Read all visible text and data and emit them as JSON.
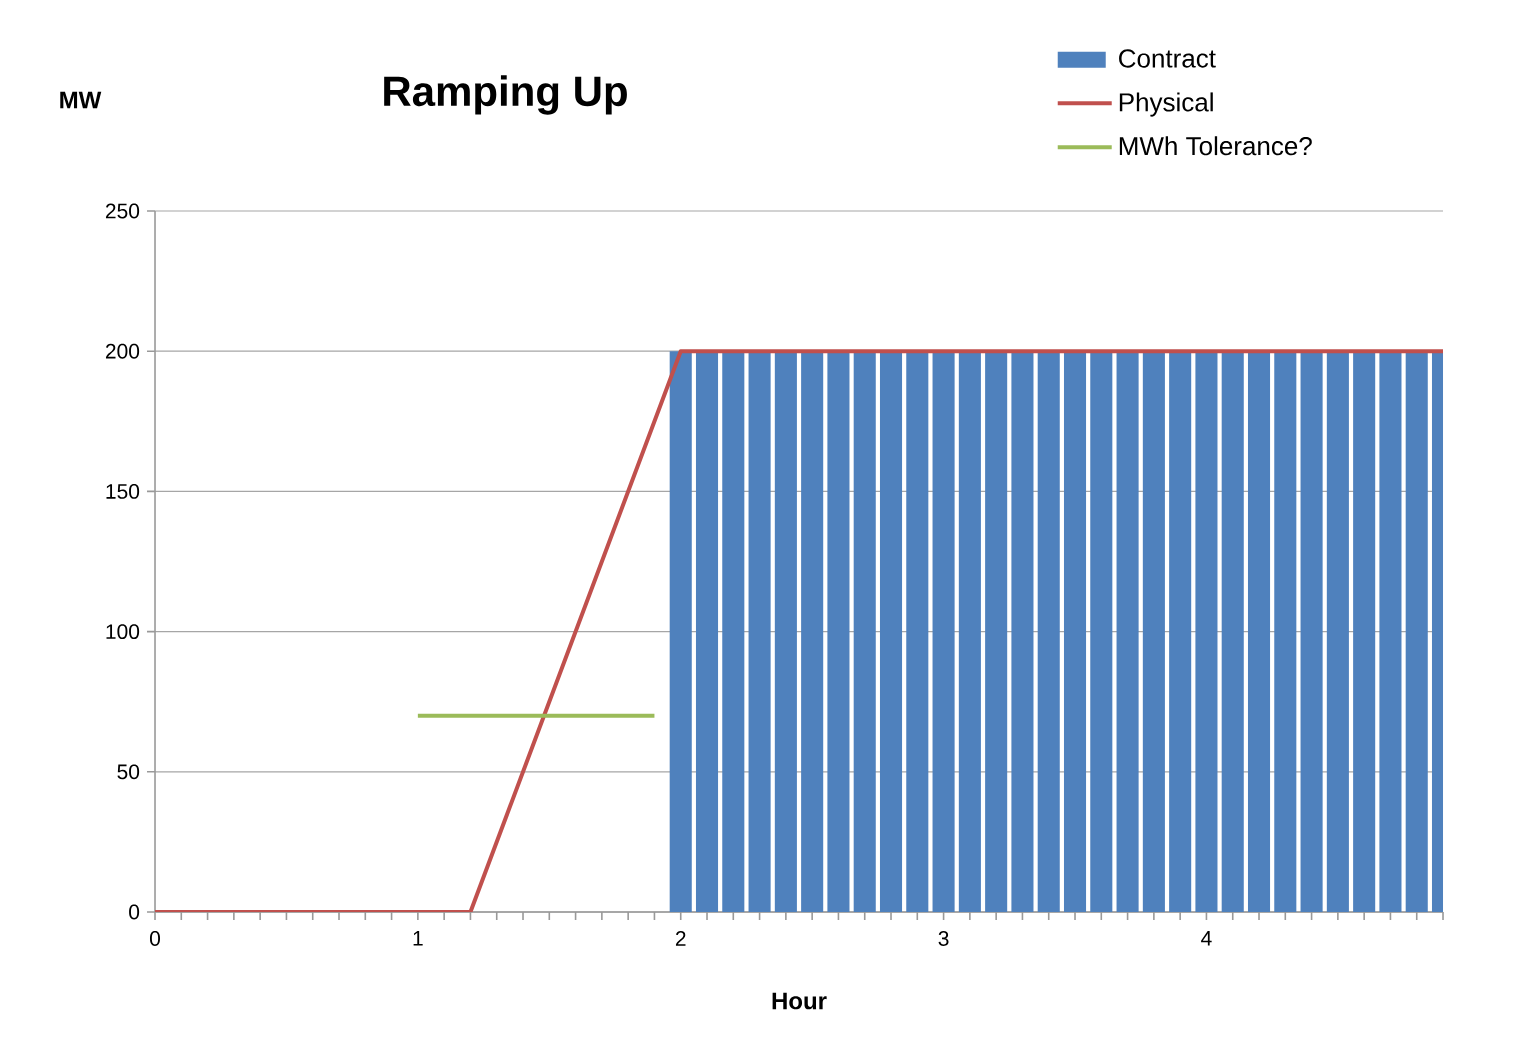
{
  "chart_data": {
    "type": "bar",
    "title": "Ramping Up",
    "xlabel": "Hour",
    "ylabel": "MW",
    "xlim": [
      0,
      4.9
    ],
    "ylim": [
      0,
      250
    ],
    "xticks": [
      0,
      {
        "value": 0.1,
        "label": null
      },
      {
        "value": 0.2,
        "label": null
      },
      {
        "value": 0.3,
        "label": null
      },
      {
        "value": 0.4,
        "label": null
      },
      {
        "value": 0.5,
        "label": null
      },
      {
        "value": 0.6,
        "label": null
      },
      {
        "value": 0.7,
        "label": null
      },
      {
        "value": 0.8,
        "label": null
      },
      {
        "value": 0.9,
        "label": null
      },
      1,
      {
        "value": 1.1,
        "label": null
      },
      {
        "value": 1.2,
        "label": null
      },
      {
        "value": 1.3,
        "label": null
      },
      {
        "value": 1.4,
        "label": null
      },
      {
        "value": 1.5,
        "label": null
      },
      {
        "value": 1.6,
        "label": null
      },
      {
        "value": 1.7,
        "label": null
      },
      {
        "value": 1.8,
        "label": null
      },
      {
        "value": 1.9,
        "label": null
      },
      2,
      {
        "value": 2.1,
        "label": null
      },
      {
        "value": 2.2,
        "label": null
      },
      {
        "value": 2.3,
        "label": null
      },
      {
        "value": 2.4,
        "label": null
      },
      {
        "value": 2.5,
        "label": null
      },
      {
        "value": 2.6,
        "label": null
      },
      {
        "value": 2.7,
        "label": null
      },
      {
        "value": 2.8,
        "label": null
      },
      {
        "value": 2.9,
        "label": null
      },
      3,
      {
        "value": 3.1,
        "label": null
      },
      {
        "value": 3.2,
        "label": null
      },
      {
        "value": 3.3,
        "label": null
      },
      {
        "value": 3.4,
        "label": null
      },
      {
        "value": 3.5,
        "label": null
      },
      {
        "value": 3.6,
        "label": null
      },
      {
        "value": 3.7,
        "label": null
      },
      {
        "value": 3.8,
        "label": null
      },
      {
        "value": 3.9,
        "label": null
      },
      4,
      {
        "value": 4.1,
        "label": null
      },
      {
        "value": 4.2,
        "label": null
      },
      {
        "value": 4.3,
        "label": null
      },
      {
        "value": 4.4,
        "label": null
      },
      {
        "value": 4.5,
        "label": null
      },
      {
        "value": 4.6,
        "label": null
      },
      {
        "value": 4.7,
        "label": null
      },
      {
        "value": 4.8,
        "label": null
      },
      {
        "value": 4.9,
        "label": null
      }
    ],
    "yticks": [
      0,
      50,
      100,
      150,
      200,
      250
    ],
    "grid": "y",
    "legend": "top right",
    "series": [
      {
        "name": "Contract",
        "color": "#4f81bd",
        "x": [
          2.0,
          2.1,
          2.2,
          2.3,
          2.4,
          2.5,
          2.6,
          2.7,
          2.8,
          2.9,
          3.0,
          3.1,
          3.2,
          3.3,
          3.4,
          3.5,
          3.6,
          3.7,
          3.8,
          3.9,
          4.0,
          4.1,
          4.2,
          4.3,
          4.4,
          4.5,
          4.6,
          4.7,
          4.8,
          4.9
        ],
        "values": [
          200,
          200,
          200,
          200,
          200,
          200,
          200,
          200,
          200,
          200,
          200,
          200,
          200,
          200,
          200,
          200,
          200,
          200,
          200,
          200,
          200,
          200,
          200,
          200,
          200,
          200,
          200,
          200,
          200,
          200
        ]
      },
      {
        "name": "Physical",
        "type": "line",
        "color": "#c0504d",
        "x": [
          0,
          1.2,
          2.0,
          4.9
        ],
        "values": [
          0,
          0,
          200,
          200
        ]
      },
      {
        "name": "MWh Tolerance?",
        "type": "line",
        "color": "#9bbb59",
        "x": [
          1.0,
          1.9
        ],
        "values": [
          70,
          70
        ]
      }
    ]
  }
}
